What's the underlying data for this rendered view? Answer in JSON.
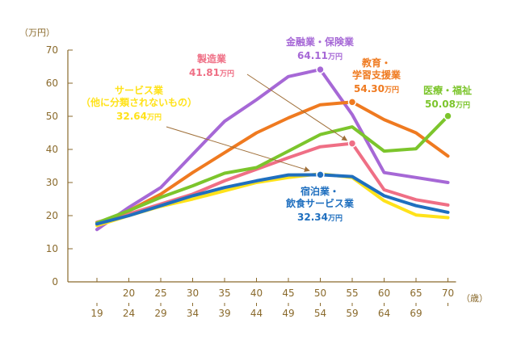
{
  "chart_data": {
    "type": "line",
    "title": "",
    "y_unit_label": "（万円）",
    "x_unit_label": "（歳）",
    "ylim": [
      0,
      70
    ],
    "yticks": [
      0,
      10,
      20,
      30,
      40,
      50,
      60,
      70
    ],
    "grid": false,
    "categories": [
      {
        "top": "",
        "bottom": "19"
      },
      {
        "top": "20",
        "bottom": "24"
      },
      {
        "top": "25",
        "bottom": "29"
      },
      {
        "top": "30",
        "bottom": "34"
      },
      {
        "top": "35",
        "bottom": "39"
      },
      {
        "top": "40",
        "bottom": "44"
      },
      {
        "top": "45",
        "bottom": "49"
      },
      {
        "top": "50",
        "bottom": "54"
      },
      {
        "top": "55",
        "bottom": "59"
      },
      {
        "top": "60",
        "bottom": "64"
      },
      {
        "top": "65",
        "bottom": "69"
      },
      {
        "top": "70",
        "bottom": ""
      }
    ],
    "series": [
      {
        "name": "金融業・保険業",
        "color": "#a668d6",
        "values": [
          15.8,
          22.5,
          28.5,
          38.5,
          48.5,
          55,
          62,
          64.11,
          50.5,
          33,
          31.5,
          30
        ],
        "highlight_index": 7,
        "annotation": {
          "lines": [
            "金融業・保険業"
          ],
          "value": "64.11",
          "unit": "万円"
        }
      },
      {
        "name": "製造業",
        "color": "#ef6f85",
        "values": [
          18,
          20.5,
          23.5,
          26.5,
          30.5,
          34,
          37.5,
          40.8,
          41.81,
          27.8,
          24.8,
          23.2
        ],
        "highlight_index": 8,
        "annotation": {
          "lines": [
            "製造業"
          ],
          "value": "41.81",
          "unit": "万円"
        }
      },
      {
        "name": "教育・学習支援業",
        "color": "#ef7a20",
        "values": [
          17.5,
          21.5,
          26.5,
          33,
          39,
          45,
          49.5,
          53.5,
          54.3,
          49,
          45,
          38
        ],
        "highlight_index": 8,
        "annotation": {
          "lines": [
            "教育・",
            "学習支援業"
          ],
          "value": "54.30",
          "unit": "万円"
        }
      },
      {
        "name": "医療・福祉",
        "color": "#7cc52c",
        "values": [
          17.8,
          21.5,
          25.5,
          29,
          32.8,
          34.5,
          39.5,
          44.5,
          46.8,
          39.5,
          40.2,
          50.08
        ],
        "highlight_index": 11,
        "annotation": {
          "lines": [
            "医療・福祉"
          ],
          "value": "50.08",
          "unit": "万円"
        }
      },
      {
        "name": "サービス業（他に分類されないもの）",
        "color": "#ffe21a",
        "values": [
          17,
          20,
          22.8,
          25,
          27.5,
          30,
          31.5,
          32.64,
          31.5,
          24.5,
          20.2,
          19.4
        ],
        "highlight_index": 7,
        "annotation": {
          "lines": [
            "サービス業",
            "（他に分類されないもの）"
          ],
          "value": "32.64",
          "unit": "万円"
        }
      },
      {
        "name": "宿泊業・飲食サービス業",
        "color": "#1f6fbf",
        "values": [
          17.5,
          20,
          23,
          26,
          28.5,
          30.5,
          32.3,
          32.34,
          31.8,
          26,
          23,
          21
        ],
        "highlight_index": 7,
        "annotation": {
          "lines": [
            "宿泊業・",
            "飲食サービス業"
          ],
          "value": "32.34",
          "unit": "万円"
        }
      }
    ]
  }
}
